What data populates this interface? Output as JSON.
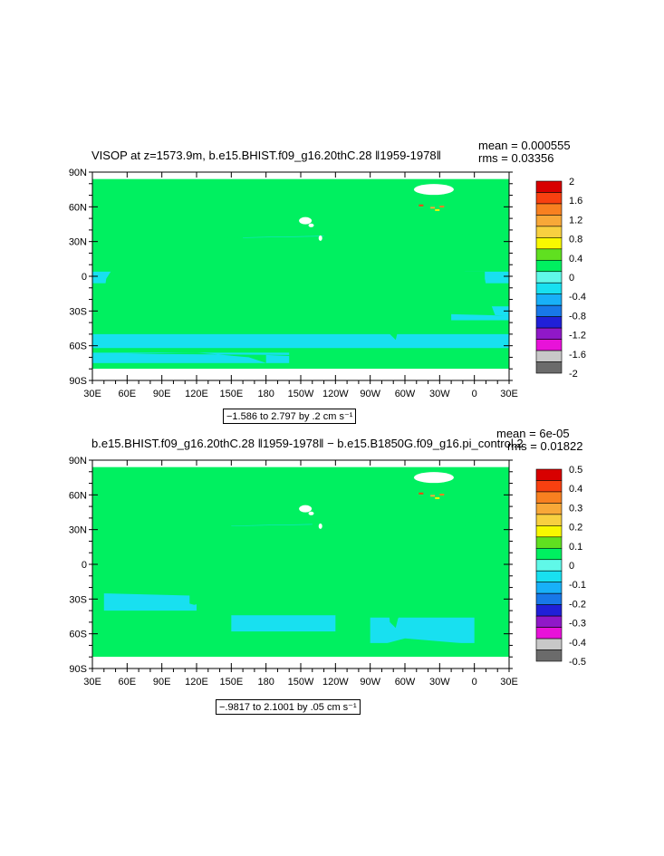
{
  "palette": [
    "#6b6b6b",
    "#c8c8c8",
    "#e812d9",
    "#9018c8",
    "#2020d8",
    "#1878e8",
    "#18b0f8",
    "#18e0f0",
    "#60f8e8",
    "#00f060",
    "#60e020",
    "#f8f800",
    "#f8d040",
    "#f8a838",
    "#f88020",
    "#f84010",
    "#d80000"
  ],
  "land_color": "#00f060",
  "ocean_color": "#18e0f0",
  "chart_data": [
    {
      "type": "heatmap",
      "title": "VISOP at z=1573.9m, b.e15.BHIST.f09_g16.20thC.28 ‖1959-1978‖",
      "mean_text": "mean = 0.000555",
      "rms_text": "rms = 0.03356",
      "range_text": "−1.586 to 2.797 by .2 cm s⁻¹",
      "x_ticks": [
        "30E",
        "60E",
        "90E",
        "120E",
        "150E",
        "180",
        "150W",
        "120W",
        "90W",
        "60W",
        "30W",
        "0",
        "30E"
      ],
      "y_ticks": [
        "90N",
        "60N",
        "30N",
        "0",
        "30S",
        "60S",
        "90S"
      ],
      "xlim": [
        30,
        390
      ],
      "ylim": [
        -90,
        90
      ],
      "legend_labels": [
        "2",
        "1.6",
        "1.2",
        "0.8",
        "0.4",
        "0",
        "-0.4",
        "-0.8",
        "-1.2",
        "-1.6",
        "-2"
      ],
      "levels": [
        -2,
        -1.8,
        -1.6,
        -1.4,
        -1.2,
        -1,
        -0.8,
        -0.6,
        -0.4,
        -0.2,
        0,
        0.2,
        0.4,
        0.6,
        0.8,
        1,
        1.2,
        1.4,
        1.6,
        1.8,
        2
      ]
    },
    {
      "type": "heatmap",
      "title": "b.e15.BHIST.f09_g16.20thC.28 ‖1959-1978‖ − b.e15.B1850G.f09_g16.pi_control.2",
      "mean_text": "mean = 6e-05",
      "rms_text": "rms = 0.01822",
      "range_text": "−.9817 to 2.1001 by .05 cm s⁻¹",
      "x_ticks": [
        "30E",
        "60E",
        "90E",
        "120E",
        "150E",
        "180",
        "150W",
        "120W",
        "90W",
        "60W",
        "30W",
        "0",
        "30E"
      ],
      "y_ticks": [
        "90N",
        "60N",
        "30N",
        "0",
        "30S",
        "60S",
        "90S"
      ],
      "xlim": [
        30,
        390
      ],
      "ylim": [
        -90,
        90
      ],
      "legend_labels": [
        "0.5",
        "0.4",
        "0.3",
        "0.2",
        "0.1",
        "0",
        "-0.1",
        "-0.2",
        "-0.3",
        "-0.4",
        "-0.5"
      ],
      "levels": [
        -0.5,
        -0.45,
        -0.4,
        -0.35,
        -0.3,
        -0.25,
        -0.2,
        -0.15,
        -0.1,
        -0.05,
        0,
        0.05,
        0.1,
        0.15,
        0.2,
        0.25,
        0.3,
        0.35,
        0.4,
        0.45,
        0.5
      ]
    }
  ]
}
